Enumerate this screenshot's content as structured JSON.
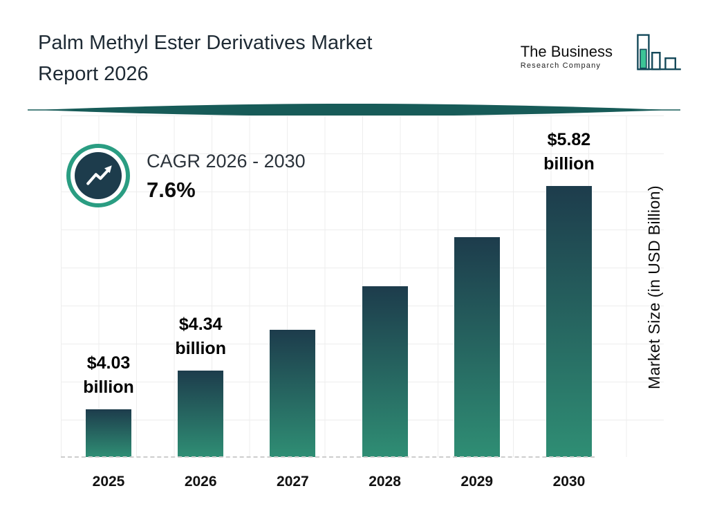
{
  "header": {
    "title_line1": "Palm Methyl Ester Derivatives Market",
    "title_line2": "Report 2026",
    "logo_line1": "The Business",
    "logo_line2": "Research Company"
  },
  "cagr": {
    "label": "CAGR 2026 - 2030",
    "value": "7.6%"
  },
  "chart_data": {
    "type": "bar",
    "title": "Palm Methyl Ester Derivatives Market Report 2026",
    "categories": [
      "2025",
      "2026",
      "2027",
      "2028",
      "2029",
      "2030"
    ],
    "values": [
      4.03,
      4.34,
      4.67,
      5.02,
      5.41,
      5.82
    ],
    "bar_labels": [
      "$4.03 billion",
      "$4.34 billion",
      "",
      "",
      "",
      "$5.82 billion"
    ],
    "ylabel": "Market Size (in USD Billion)",
    "value_axis": {
      "display_min": 3.65,
      "display_max": 5.82
    },
    "grid": true,
    "legend": false,
    "colors": {
      "bar_gradient_top": "#1d3c4c",
      "bar_gradient_bottom": "#2f8e74",
      "accent_teal": "#2a9d82",
      "divider": "#175b58"
    }
  }
}
